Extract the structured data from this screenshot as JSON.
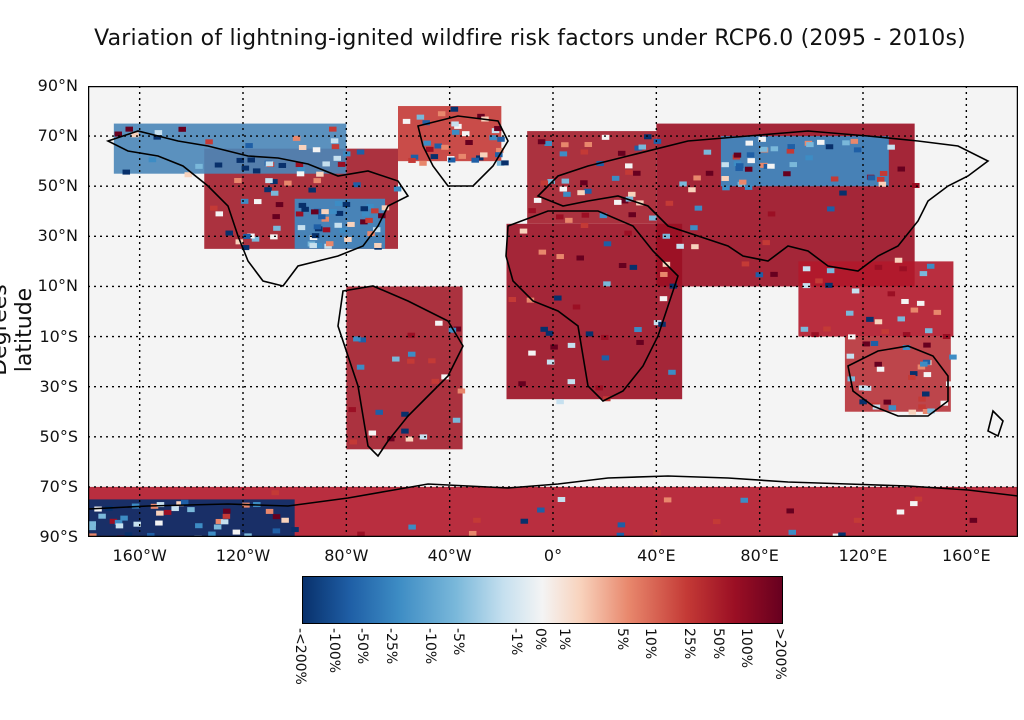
{
  "title": "Variation of lightning-ignited wildfire risk factors under RCP6.0 (2095 - 2010s)",
  "ylabel": "Degrees latitude",
  "lat_ticks": [
    {
      "deg": 90,
      "label": "90°N"
    },
    {
      "deg": 70,
      "label": "70°N"
    },
    {
      "deg": 50,
      "label": "50°N"
    },
    {
      "deg": 30,
      "label": "30°N"
    },
    {
      "deg": 10,
      "label": "10°N"
    },
    {
      "deg": -10,
      "label": "10°S"
    },
    {
      "deg": -30,
      "label": "30°S"
    },
    {
      "deg": -50,
      "label": "50°S"
    },
    {
      "deg": -70,
      "label": "70°S"
    },
    {
      "deg": -90,
      "label": "90°S"
    }
  ],
  "lon_ticks": [
    {
      "deg": -160,
      "label": "160°W"
    },
    {
      "deg": -120,
      "label": "120°W"
    },
    {
      "deg": -80,
      "label": "80°W"
    },
    {
      "deg": -40,
      "label": "40°W"
    },
    {
      "deg": 0,
      "label": "0°"
    },
    {
      "deg": 40,
      "label": "40°E"
    },
    {
      "deg": 80,
      "label": "80°E"
    },
    {
      "deg": 120,
      "label": "120°E"
    },
    {
      "deg": 160,
      "label": "160°E"
    }
  ],
  "colorbar": {
    "labels": [
      "-<200%",
      "-100%",
      "-50%",
      "-25%",
      "-10%",
      "-5%",
      "-1%",
      "0%",
      "1%",
      "5%",
      "10%",
      "25%",
      "50%",
      "100%",
      ">200%"
    ],
    "positions": [
      0,
      0.07,
      0.13,
      0.19,
      0.27,
      0.33,
      0.45,
      0.5,
      0.55,
      0.67,
      0.73,
      0.81,
      0.87,
      0.93,
      1.0
    ],
    "colors": [
      "#08306b",
      "#1f5fa6",
      "#3d8cc4",
      "#7ab8da",
      "#c6e0ef",
      "#f4f4f4",
      "#f8d2bc",
      "#e8876c",
      "#c43a36",
      "#9b0f24",
      "#67001f"
    ]
  },
  "regions": [
    {
      "name": "north-america",
      "lon": [
        -135,
        -60
      ],
      "lat": [
        25,
        65
      ],
      "fill": "#a31d2b"
    },
    {
      "name": "eastern-us",
      "lon": [
        -100,
        -65
      ],
      "lat": [
        25,
        45
      ],
      "fill": "#3d8cc4"
    },
    {
      "name": "canada-north",
      "lon": [
        -170,
        -80
      ],
      "lat": [
        55,
        75
      ],
      "fill": "#4a86b8"
    },
    {
      "name": "greenland",
      "lon": [
        -60,
        -20
      ],
      "lat": [
        60,
        82
      ],
      "fill": "#c43a36"
    },
    {
      "name": "south-america",
      "lon": [
        -80,
        -35
      ],
      "lat": [
        -55,
        10
      ],
      "fill": "#a31d2b"
    },
    {
      "name": "africa",
      "lon": [
        -18,
        50
      ],
      "lat": [
        -35,
        35
      ],
      "fill": "#9b0f24"
    },
    {
      "name": "europe",
      "lon": [
        -10,
        40
      ],
      "lat": [
        35,
        72
      ],
      "fill": "#a31d2b"
    },
    {
      "name": "asia",
      "lon": [
        40,
        140
      ],
      "lat": [
        10,
        75
      ],
      "fill": "#9b0f24"
    },
    {
      "name": "siberia",
      "lon": [
        65,
        130
      ],
      "lat": [
        50,
        70
      ],
      "fill": "#3d8cc4"
    },
    {
      "name": "southeast-asia",
      "lon": [
        95,
        155
      ],
      "lat": [
        -10,
        20
      ],
      "fill": "#b2182b"
    },
    {
      "name": "australia",
      "lon": [
        113,
        154
      ],
      "lat": [
        -40,
        -10
      ],
      "fill": "#b73238"
    },
    {
      "name": "antarctica",
      "lon": [
        -180,
        180
      ],
      "lat": [
        -90,
        -70
      ],
      "fill": "#b2182b"
    },
    {
      "name": "antarctica-west",
      "lon": [
        -180,
        -100
      ],
      "lat": [
        -90,
        -75
      ],
      "fill": "#08306b"
    }
  ]
}
